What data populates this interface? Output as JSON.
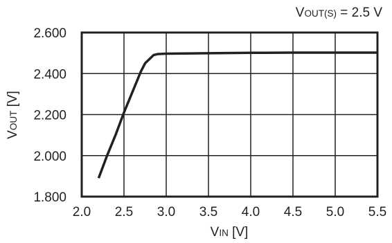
{
  "chart_data": {
    "type": "line",
    "annotation": {
      "main": "V",
      "sub": "OUT(S)",
      "rest": " = 2.5 V"
    },
    "xlabel": {
      "main": "V",
      "sub": "IN",
      "rest": " [V]"
    },
    "ylabel": {
      "main": "V",
      "sub": "OUT",
      "rest": " [V]"
    },
    "xlim": [
      2.0,
      5.5
    ],
    "ylim": [
      1.8,
      2.6
    ],
    "x_ticks": [
      "2.0",
      "2.5",
      "3.0",
      "3.5",
      "4.0",
      "4.5",
      "5.0",
      "5.5"
    ],
    "y_ticks": [
      "1.800",
      "2.000",
      "2.200",
      "2.400",
      "2.600"
    ],
    "grid": true,
    "series": [
      {
        "color": "#231f20",
        "points": [
          [
            2.2,
            1.89
          ],
          [
            2.3,
            2.0
          ],
          [
            2.4,
            2.1
          ],
          [
            2.5,
            2.21
          ],
          [
            2.6,
            2.31
          ],
          [
            2.7,
            2.41
          ],
          [
            2.75,
            2.45
          ],
          [
            2.8,
            2.47
          ],
          [
            2.85,
            2.49
          ],
          [
            2.9,
            2.495
          ],
          [
            3.0,
            2.497
          ],
          [
            3.5,
            2.499
          ],
          [
            4.0,
            2.501
          ],
          [
            4.5,
            2.502
          ],
          [
            5.0,
            2.502
          ],
          [
            5.5,
            2.502
          ]
        ]
      }
    ]
  }
}
